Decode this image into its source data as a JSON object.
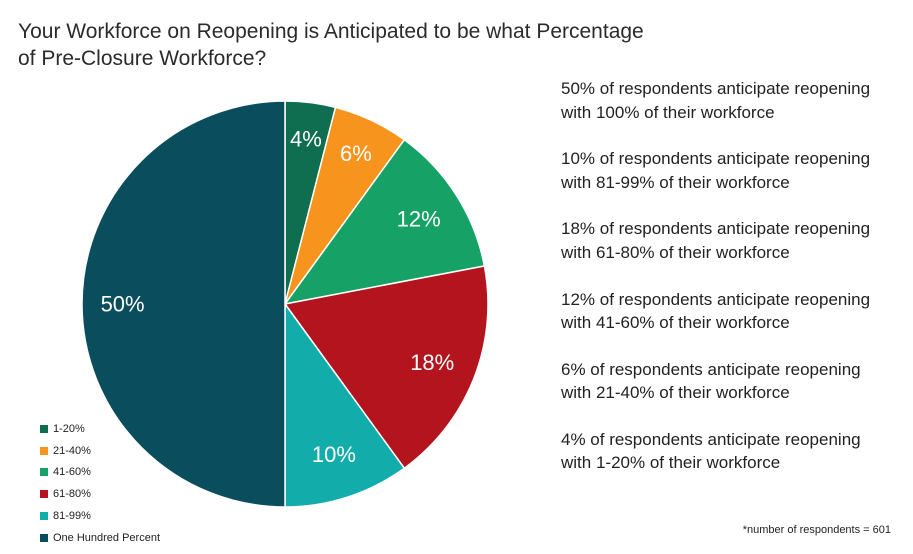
{
  "title_lines": [
    "Your Workforce on Reopening is Anticipated to be what Percentage",
    "of Pre-Closure Workforce?"
  ],
  "chart_data": {
    "type": "pie",
    "title": "Your Workforce on Reopening is Anticipated to be what Percentage of Pre-Closure Workforce?",
    "slices": [
      {
        "label": "1-20%",
        "value": 4,
        "display": "4%",
        "color": "#0f6e4f"
      },
      {
        "label": "21-40%",
        "value": 6,
        "display": "6%",
        "color": "#f7941d"
      },
      {
        "label": "41-60%",
        "value": 12,
        "display": "12%",
        "color": "#16a266"
      },
      {
        "label": "61-80%",
        "value": 18,
        "display": "18%",
        "color": "#b3141e"
      },
      {
        "label": "81-99%",
        "value": 10,
        "display": "10%",
        "color": "#12adaa"
      },
      {
        "label": "One Hundred Percent",
        "value": 50,
        "display": "50%",
        "color": "#0a4e5e"
      }
    ],
    "legend_position": "bottom-left"
  },
  "notes": [
    [
      "50% of respondents anticipate reopening",
      "with 100% of their workforce"
    ],
    [
      "10% of respondents anticipate reopening",
      "with 81-99% of their workforce"
    ],
    [
      "18% of respondents anticipate reopening",
      "with 61-80% of their workforce"
    ],
    [
      "12% of respondents anticipate reopening",
      "with 41-60% of their workforce"
    ],
    [
      "6% of respondents anticipate reopening",
      "with 21-40% of their workforce"
    ],
    [
      "4% of respondents anticipate reopening",
      "with 1-20% of their workforce"
    ]
  ],
  "footnote": "*number of respondents = 601"
}
